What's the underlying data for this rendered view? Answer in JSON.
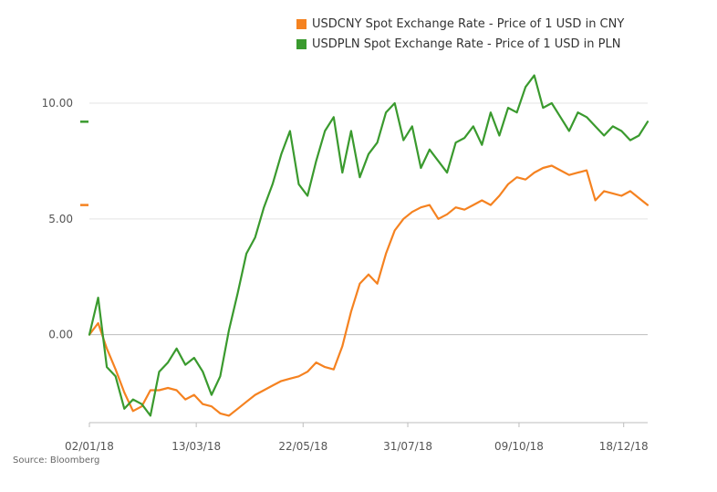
{
  "legend": [
    {
      "label": "USDCNY Spot Exchange Rate - Price of 1 USD in CNY",
      "color": "#f58220"
    },
    {
      "label": "USDPLN Spot Exchange Rate - Price of 1 USD in PLN",
      "color": "#3a9a2e"
    }
  ],
  "source": "Source: Bloomberg",
  "chart_data": {
    "type": "line",
    "ylim": [
      -3.8,
      11.5
    ],
    "y_ticks": [
      0,
      5,
      10
    ],
    "y_tick_labels": [
      "0.00",
      "5.00",
      "10.00"
    ],
    "x_ticks": [
      {
        "x": 0,
        "label": "02/01/18"
      },
      {
        "x": 49,
        "label": "13/03/18"
      },
      {
        "x": 98,
        "label": "22/05/18"
      },
      {
        "x": 146,
        "label": "31/07/18"
      },
      {
        "x": 197,
        "label": "09/10/18"
      },
      {
        "x": 245,
        "label": "18/12/18"
      }
    ],
    "x_range": [
      0,
      256
    ],
    "grid": "horizontal",
    "series": [
      {
        "name": "USDCNY Spot Exchange Rate - Price of 1 USD in CNY",
        "color": "#f58220",
        "last_value": 5.6,
        "x": [
          0,
          4,
          8,
          12,
          16,
          20,
          24,
          28,
          32,
          36,
          40,
          44,
          48,
          52,
          56,
          60,
          64,
          68,
          72,
          76,
          80,
          84,
          88,
          92,
          96,
          100,
          104,
          108,
          112,
          116,
          120,
          124,
          128,
          132,
          136,
          140,
          144,
          148,
          152,
          156,
          160,
          164,
          168,
          172,
          176,
          180,
          184,
          188,
          192,
          196,
          200,
          204,
          208,
          212,
          216,
          220,
          224,
          228,
          232,
          236,
          240,
          244,
          248,
          252,
          256
        ],
        "values": [
          0.0,
          0.5,
          -0.6,
          -1.5,
          -2.5,
          -3.3,
          -3.1,
          -2.4,
          -2.4,
          -2.3,
          -2.4,
          -2.8,
          -2.6,
          -3.0,
          -3.1,
          -3.4,
          -3.5,
          -3.2,
          -2.9,
          -2.6,
          -2.4,
          -2.2,
          -2.0,
          -1.9,
          -1.8,
          -1.6,
          -1.2,
          -1.4,
          -1.5,
          -0.5,
          1.0,
          2.2,
          2.6,
          2.2,
          3.5,
          4.5,
          5.0,
          5.3,
          5.5,
          5.6,
          5.0,
          5.2,
          5.5,
          5.4,
          5.6,
          5.8,
          5.6,
          6.0,
          6.5,
          6.8,
          6.7,
          7.0,
          7.2,
          7.3,
          7.1,
          6.9,
          7.0,
          7.1,
          5.8,
          6.2,
          6.1,
          6.0,
          6.2,
          5.9,
          5.6
        ]
      },
      {
        "name": "USDPLN Spot Exchange Rate - Price of 1 USD in PLN",
        "color": "#3a9a2e",
        "last_value": 9.2,
        "x": [
          0,
          4,
          8,
          12,
          16,
          20,
          24,
          28,
          32,
          36,
          40,
          44,
          48,
          52,
          56,
          60,
          64,
          68,
          72,
          76,
          80,
          84,
          88,
          92,
          96,
          100,
          104,
          108,
          112,
          116,
          120,
          124,
          128,
          132,
          136,
          140,
          144,
          148,
          152,
          156,
          160,
          164,
          168,
          172,
          176,
          180,
          184,
          188,
          192,
          196,
          200,
          204,
          208,
          212,
          216,
          220,
          224,
          228,
          232,
          236,
          240,
          244,
          248,
          252,
          256
        ],
        "values": [
          0.0,
          1.6,
          -1.4,
          -1.8,
          -3.2,
          -2.8,
          -3.0,
          -3.5,
          -1.6,
          -1.2,
          -0.6,
          -1.3,
          -1.0,
          -1.6,
          -2.6,
          -1.8,
          0.2,
          1.8,
          3.5,
          4.2,
          5.5,
          6.5,
          7.8,
          8.8,
          6.5,
          6.0,
          7.5,
          8.8,
          9.4,
          7.0,
          8.8,
          6.8,
          7.8,
          8.3,
          9.6,
          10.0,
          8.4,
          9.0,
          7.2,
          8.0,
          7.5,
          7.0,
          8.3,
          8.5,
          9.0,
          8.2,
          9.6,
          8.6,
          9.8,
          9.6,
          10.7,
          11.2,
          9.8,
          10.0,
          9.4,
          8.8,
          9.6,
          9.4,
          9.0,
          8.6,
          9.0,
          8.8,
          8.4,
          8.6,
          9.2
        ]
      }
    ]
  }
}
